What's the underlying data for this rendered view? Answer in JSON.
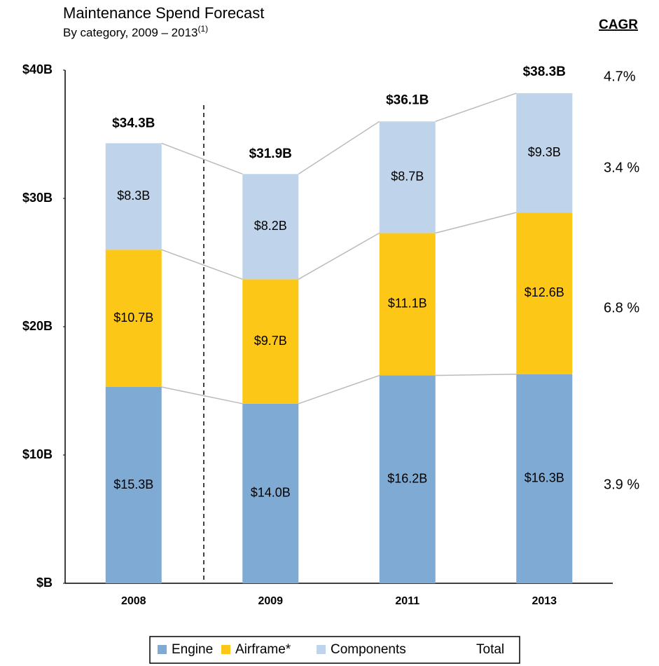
{
  "chart_data": {
    "type": "stacked_bar",
    "title": "Maintenance Spend Forecast",
    "subtitle": "By category, 2009 – 2013",
    "subtitle_note": "(1)",
    "categories": [
      "2008",
      "2009",
      "2011",
      "2013"
    ],
    "series": [
      {
        "name": "Engine",
        "color": "#7faad4",
        "values": [
          15.3,
          14.0,
          16.2,
          16.3
        ],
        "value_labels": [
          "$15.3B",
          "$14.0B",
          "$16.2B",
          "$16.3B"
        ]
      },
      {
        "name": "Airframe*",
        "color": "#fcc717",
        "values": [
          10.7,
          9.7,
          11.1,
          12.6
        ],
        "value_labels": [
          "$10.7B",
          "$9.7B",
          "$11.1B",
          "$12.6B"
        ]
      },
      {
        "name": "Components",
        "color": "#bfd4ea",
        "values": [
          8.3,
          8.2,
          8.7,
          9.3
        ],
        "value_labels": [
          "$8.3B",
          "$8.2B",
          "$8.7B",
          "$9.3B"
        ]
      }
    ],
    "totals": {
      "name": "Total",
      "values": [
        34.3,
        31.9,
        36.1,
        38.3
      ],
      "value_labels": [
        "$34.3B",
        "$31.9B",
        "$36.1B",
        "$38.3B"
      ]
    },
    "cagr": {
      "title": "CAGR",
      "labels": [
        "4.7%",
        "3.4 %",
        "6.8 %",
        "3.9 %"
      ]
    },
    "ylim": [
      0,
      40
    ],
    "yticks": [
      {
        "value": 0,
        "label": "$B"
      },
      {
        "value": 10,
        "label": "$10B"
      },
      {
        "value": 20,
        "label": "$20B"
      },
      {
        "value": 30,
        "label": "$30B"
      },
      {
        "value": 40,
        "label": "$40B"
      }
    ],
    "grid": false
  }
}
